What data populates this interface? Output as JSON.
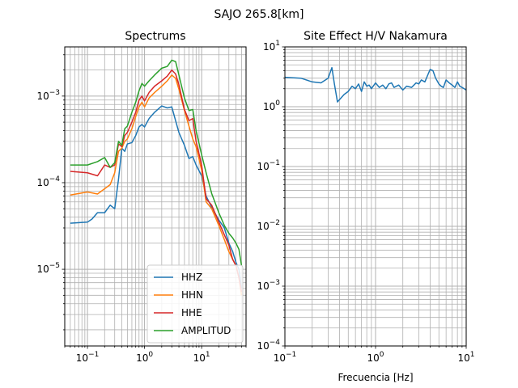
{
  "figure": {
    "suptitle": "SAJO 265.8[km]"
  },
  "chart_data": [
    {
      "type": "line",
      "title": "Spectrums",
      "xlabel": "",
      "ylabel": "",
      "xscale": "log",
      "yscale": "log",
      "xlim": [
        0.04,
        60
      ],
      "ylim": [
        1.3e-06,
        0.0037
      ],
      "grid": true,
      "legend_position": "lower-right",
      "xticks": [
        {
          "value": 0.1,
          "label": "10",
          "exp": "−1"
        },
        {
          "value": 1,
          "label": "10",
          "exp": "0"
        },
        {
          "value": 10,
          "label": "10",
          "exp": "1"
        }
      ],
      "yticks": [
        {
          "value": 1e-05,
          "label": "10",
          "exp": "−5"
        },
        {
          "value": 0.0001,
          "label": "10",
          "exp": "−4"
        },
        {
          "value": 0.001,
          "label": "10",
          "exp": "−3"
        }
      ],
      "series": [
        {
          "name": "HHZ",
          "color": "#1f77b4",
          "x": [
            0.05,
            0.1,
            0.12,
            0.15,
            0.2,
            0.25,
            0.3,
            0.35,
            0.4,
            0.45,
            0.5,
            0.6,
            0.7,
            0.8,
            0.9,
            1.0,
            1.2,
            1.5,
            2,
            2.5,
            3,
            3.5,
            4,
            5,
            6,
            7,
            8,
            10,
            12,
            15,
            20,
            25,
            30,
            35,
            40,
            45,
            50
          ],
          "y": [
            3.4e-05,
            3.5e-05,
            3.8e-05,
            4.5e-05,
            4.5e-05,
            5.5e-05,
            5e-05,
            0.00011,
            0.00025,
            0.00023,
            0.00028,
            0.00029,
            0.00035,
            0.00044,
            0.00047,
            0.00044,
            0.00055,
            0.00065,
            0.00077,
            0.00073,
            0.00075,
            0.00052,
            0.00038,
            0.00027,
            0.00019,
            0.0002,
            0.00016,
            0.00012,
            7e-05,
            5.2e-05,
            3.7e-05,
            3e-05,
            2e-05,
            1.6e-05,
            1.2e-05,
            1e-05,
            6e-06
          ]
        },
        {
          "name": "HHN",
          "color": "#ff7f0e",
          "x": [
            0.05,
            0.1,
            0.15,
            0.2,
            0.25,
            0.3,
            0.35,
            0.4,
            0.45,
            0.5,
            0.6,
            0.7,
            0.8,
            0.9,
            1.0,
            1.2,
            1.5,
            2,
            2.5,
            3,
            3.5,
            4,
            5,
            6,
            7,
            8,
            10,
            12,
            15,
            20,
            25,
            30,
            35,
            40,
            45,
            50
          ],
          "y": [
            7.2e-05,
            7.8e-05,
            7.4e-05,
            8.5e-05,
            9.5e-05,
            0.00013,
            0.00023,
            0.00025,
            0.0003,
            0.00032,
            0.00042,
            0.00058,
            0.00075,
            0.00085,
            0.00075,
            0.00095,
            0.0011,
            0.0013,
            0.0015,
            0.00175,
            0.0016,
            0.0012,
            0.00068,
            0.00045,
            0.00032,
            0.00026,
            0.00014,
            6e-05,
            5e-05,
            3.2e-05,
            2.2e-05,
            1.6e-05,
            1.3e-05,
            1.1e-05,
            8e-06,
            5e-06
          ]
        },
        {
          "name": "HHE",
          "color": "#d62728",
          "x": [
            0.05,
            0.1,
            0.15,
            0.2,
            0.25,
            0.3,
            0.35,
            0.4,
            0.45,
            0.5,
            0.6,
            0.7,
            0.8,
            0.9,
            1.0,
            1.2,
            1.5,
            2,
            2.5,
            3,
            3.5,
            4,
            5,
            6,
            7,
            8,
            10,
            12,
            15,
            20,
            25,
            30,
            35,
            40,
            45,
            50
          ],
          "y": [
            0.000135,
            0.00013,
            0.00012,
            0.00016,
            0.00015,
            0.00016,
            0.00028,
            0.00026,
            0.00035,
            0.00038,
            0.0005,
            0.00065,
            0.0009,
            0.001,
            0.00088,
            0.0011,
            0.0013,
            0.0015,
            0.0017,
            0.002,
            0.0018,
            0.00135,
            0.0007,
            0.00052,
            0.00055,
            0.0003,
            0.00016,
            6.5e-05,
            5.5e-05,
            3.5e-05,
            2.5e-05,
            1.9e-05,
            1.3e-05,
            1.1e-05,
            8e-06,
            5.5e-06
          ]
        },
        {
          "name": "AMPLITUD",
          "color": "#2ca02c",
          "x": [
            0.05,
            0.1,
            0.15,
            0.2,
            0.25,
            0.3,
            0.35,
            0.4,
            0.45,
            0.5,
            0.6,
            0.7,
            0.8,
            0.9,
            1.0,
            1.2,
            1.5,
            2,
            2.5,
            3,
            3.5,
            4,
            5,
            6,
            7,
            8,
            10,
            12,
            15,
            20,
            25,
            30,
            35,
            40,
            45,
            50
          ],
          "y": [
            0.00016,
            0.00016,
            0.000175,
            0.000195,
            0.00015,
            0.00017,
            0.0003,
            0.00027,
            0.00042,
            0.00045,
            0.00065,
            0.00085,
            0.00115,
            0.0014,
            0.0013,
            0.0015,
            0.00175,
            0.0021,
            0.0022,
            0.0026,
            0.0025,
            0.00175,
            0.00095,
            0.00068,
            0.0007,
            0.0004,
            0.00021,
            0.00013,
            7.5e-05,
            4.5e-05,
            3.2e-05,
            2.6e-05,
            2.3e-05,
            2e-05,
            1.7e-05,
            1.1e-05
          ]
        }
      ]
    },
    {
      "type": "line",
      "title": "Site Effect H/V Nakamura",
      "xlabel": "Frecuencia [Hz]",
      "ylabel": "",
      "xscale": "log",
      "yscale": "log",
      "xlim": [
        0.1,
        10
      ],
      "ylim": [
        0.0001,
        10
      ],
      "grid": true,
      "xticks": [
        {
          "value": 0.1,
          "label": "10",
          "exp": "−1"
        },
        {
          "value": 1,
          "label": "10",
          "exp": "0"
        },
        {
          "value": 10,
          "label": "10",
          "exp": "1"
        }
      ],
      "yticks": [
        {
          "value": 0.0001,
          "label": "10",
          "exp": "−4"
        },
        {
          "value": 0.001,
          "label": "10",
          "exp": "−3"
        },
        {
          "value": 0.01,
          "label": "10",
          "exp": "−2"
        },
        {
          "value": 0.1,
          "label": "10",
          "exp": "−1"
        },
        {
          "value": 1,
          "label": "10",
          "exp": "0"
        },
        {
          "value": 10,
          "label": "10",
          "exp": "1"
        }
      ],
      "series": [
        {
          "name": "H/V",
          "color": "#1f77b4",
          "x": [
            0.1,
            0.15,
            0.2,
            0.25,
            0.3,
            0.33,
            0.35,
            0.38,
            0.45,
            0.5,
            0.55,
            0.6,
            0.65,
            0.7,
            0.75,
            0.8,
            0.85,
            0.9,
            1.0,
            1.1,
            1.2,
            1.3,
            1.4,
            1.5,
            1.6,
            1.8,
            2,
            2.2,
            2.5,
            2.8,
            3,
            3.2,
            3.5,
            3.8,
            4,
            4.3,
            4.6,
            5,
            5.3,
            5.6,
            6,
            6.5,
            7,
            7.5,
            8,
            8.5,
            9,
            9.5,
            10
          ],
          "y": [
            3.1,
            3.0,
            2.6,
            2.5,
            3.0,
            4.5,
            2.5,
            1.2,
            1.6,
            1.8,
            2.2,
            2.0,
            2.4,
            1.8,
            2.6,
            2.2,
            2.3,
            2.0,
            2.5,
            2.1,
            2.3,
            2.0,
            2.4,
            2.5,
            2.1,
            2.3,
            1.9,
            2.2,
            2.1,
            2.5,
            2.4,
            2.8,
            2.6,
            3.5,
            4.2,
            4.0,
            3.0,
            2.4,
            2.2,
            2.1,
            2.8,
            2.5,
            2.3,
            2.1,
            2.6,
            2.2,
            2.1,
            2.0,
            1.9
          ]
        }
      ]
    }
  ]
}
